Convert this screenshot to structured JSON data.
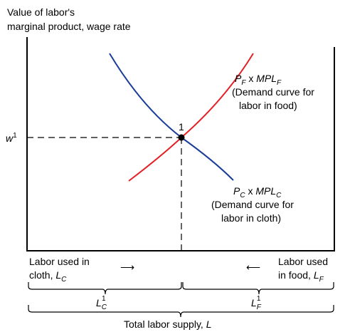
{
  "axis": {
    "y_label_line1": "Value of labor's",
    "y_label_line2": "marginal product, wage rate",
    "wage_label": "w",
    "wage_sup": "1",
    "equilibrium_label": "1"
  },
  "curves": {
    "food": {
      "name_p": "P",
      "name_p_sub": "F",
      "name_times": " x ",
      "name_mpl": "MPL",
      "name_mpl_sub": "F",
      "desc_line1": "(Demand curve for",
      "desc_line2": "labor in food)",
      "color": "#e32127"
    },
    "cloth": {
      "name_p": "P",
      "name_p_sub": "C",
      "name_times": " x ",
      "name_mpl": "MPL",
      "name_mpl_sub": "C",
      "desc_line1": "(Demand curve for",
      "desc_line2": "labor in cloth)",
      "color": "#1a3d9a"
    }
  },
  "bottom": {
    "left_line1": "Labor used in",
    "left_line2_text": "cloth, ",
    "left_line2_var": "L",
    "left_line2_sub": "C",
    "right_line1": "Labor used",
    "right_line2_text": "in food, ",
    "right_line2_var": "L",
    "right_line2_sub": "F",
    "arrow_right": "⟶",
    "arrow_left": "⟵",
    "lc_var": "L",
    "lc_sub": "C",
    "lc_sup": "1",
    "lf_var": "L",
    "lf_sub": "F",
    "lf_sup": "1",
    "total_text": "Total labor supply, ",
    "total_var": "L"
  }
}
